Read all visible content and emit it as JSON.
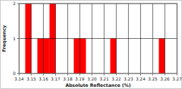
{
  "chart_data": {
    "type": "histogram",
    "x_label": "Absolute Reflectance (%)",
    "y_label": "Frequency",
    "bins": [
      3.14,
      3.145,
      3.15,
      3.155,
      3.16,
      3.165,
      3.17,
      3.175,
      3.18,
      3.185,
      3.19,
      3.195,
      3.2,
      3.205,
      3.21,
      3.215,
      3.22,
      3.225,
      3.23,
      3.235,
      3.24,
      3.245,
      3.25,
      3.255,
      3.26,
      3.265,
      3.27
    ],
    "counts": [
      0,
      2,
      0,
      1,
      1,
      2,
      0,
      0,
      0,
      1,
      1,
      0,
      0,
      0,
      0,
      1,
      0,
      0,
      0,
      0,
      0,
      0,
      0,
      1,
      0,
      0
    ],
    "color": "#ff0000",
    "xlim": [
      3.14,
      3.27
    ],
    "ylim": [
      0,
      2
    ],
    "xticks": [
      3.14,
      3.15,
      3.16,
      3.17,
      3.18,
      3.19,
      {
        "value": 3.2,
        "label": "3.20"
      },
      3.21,
      3.22,
      3.23,
      3.24,
      3.25,
      3.26,
      3.27
    ],
    "yticks": [
      0,
      1,
      2
    ],
    "grid": true
  }
}
